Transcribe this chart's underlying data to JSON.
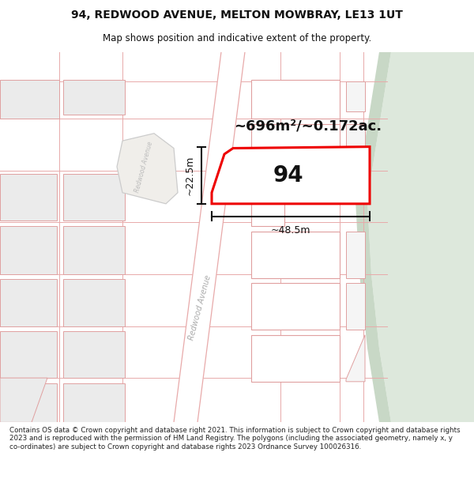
{
  "title": "94, REDWOOD AVENUE, MELTON MOWBRAY, LE13 1UT",
  "subtitle": "Map shows position and indicative extent of the property.",
  "footer": "Contains OS data © Crown copyright and database right 2021. This information is subject to Crown copyright and database rights 2023 and is reproduced with the permission of HM Land Registry. The polygons (including the associated geometry, namely x, y co-ordinates) are subject to Crown copyright and database rights 2023 Ordnance Survey 100026316.",
  "area_label": "~696m²/~0.172ac.",
  "property_number": "94",
  "dim_width": "~48.5m",
  "dim_height": "~22.5m",
  "map_bg": "#f7f6f2",
  "road_color": "#ffffff",
  "road_stroke": "#e8aaaa",
  "building_fill": "#ebebeb",
  "building_stroke": "#e0a0a0",
  "green_fill": "#dde8dc",
  "green_edge_fill": "#c8d8c6",
  "property_stroke": "#ee0000",
  "property_fill": "#ffffff",
  "dim_color": "#111111",
  "title_color": "#111111",
  "footer_color": "#222222",
  "title_fontsize": 10,
  "subtitle_fontsize": 8.5,
  "footer_fontsize": 6.3,
  "area_fontsize": 13,
  "number_fontsize": 20,
  "dim_fontsize": 9
}
